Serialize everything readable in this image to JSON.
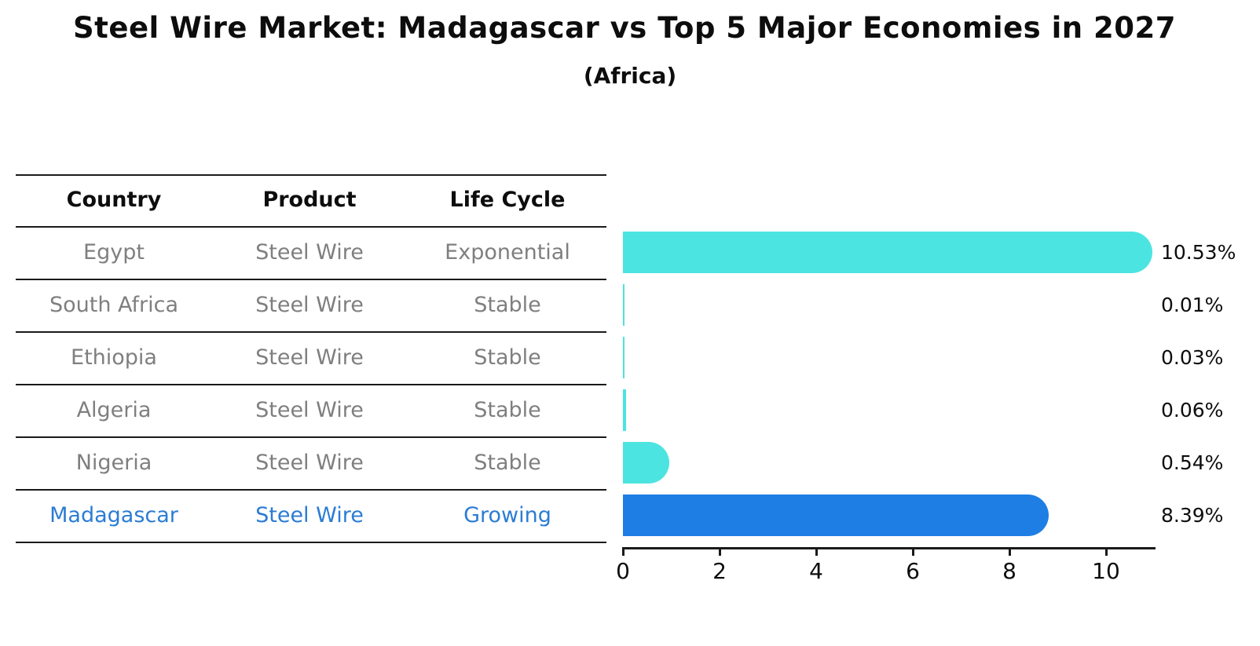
{
  "title": "Steel Wire Market: Madagascar vs Top 5 Major Economies in 2027",
  "subtitle": "(Africa)",
  "table": {
    "headers": {
      "country": "Country",
      "product": "Product",
      "life_cycle": "Life Cycle"
    },
    "rows": [
      {
        "country": "Egypt",
        "product": "Steel Wire",
        "life_cycle": "Exponential",
        "highlight": false
      },
      {
        "country": "South Africa",
        "product": "Steel Wire",
        "life_cycle": "Stable",
        "highlight": false
      },
      {
        "country": "Ethiopia",
        "product": "Steel Wire",
        "life_cycle": "Stable",
        "highlight": false
      },
      {
        "country": "Algeria",
        "product": "Steel Wire",
        "life_cycle": "Stable",
        "highlight": false
      },
      {
        "country": "Nigeria",
        "product": "Steel Wire",
        "life_cycle": "Stable",
        "highlight": false
      },
      {
        "country": "Madagascar",
        "product": "Steel Wire",
        "life_cycle": "Growing",
        "highlight": true
      }
    ]
  },
  "chart_data": {
    "type": "bar",
    "orientation": "horizontal",
    "title": "Steel Wire Market: Madagascar vs Top 5 Major Economies in 2027",
    "subtitle": "(Africa)",
    "categories": [
      "Egypt",
      "South Africa",
      "Ethiopia",
      "Algeria",
      "Nigeria",
      "Madagascar"
    ],
    "values": [
      10.53,
      0.01,
      0.03,
      0.06,
      0.54,
      8.39
    ],
    "value_labels": [
      "10.53%",
      "0.01%",
      "0.03%",
      "0.06%",
      "0.54%",
      "8.39%"
    ],
    "highlight_index": 5,
    "xlabel": "",
    "ylabel": "",
    "xlim": [
      0,
      11
    ],
    "xticks": [
      0,
      2,
      4,
      6,
      8,
      10
    ],
    "xtick_labels": [
      "0",
      "2",
      "4",
      "6",
      "8",
      "10"
    ],
    "grid": false,
    "legend": "none"
  },
  "colors": {
    "bar_default": "#4BE4E1",
    "bar_highlight": "#1E7EE4",
    "row_text": "#7f7f7f",
    "highlight_text": "#2B7CD3",
    "header_text": "#0d0d0d",
    "line": "#1a1a1a",
    "value_text": "#0d0d0d"
  }
}
